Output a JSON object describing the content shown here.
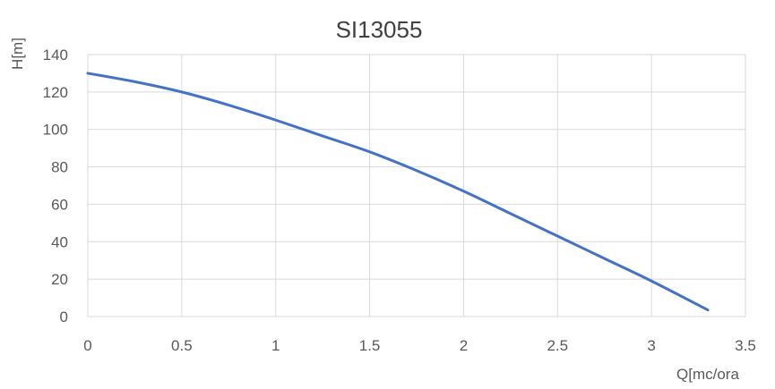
{
  "chart_data": {
    "type": "line",
    "title": "SI13055",
    "xlabel": "Q[mc/ora",
    "ylabel": "H[m]",
    "xlim": [
      0,
      3.5
    ],
    "ylim": [
      0,
      140
    ],
    "x_ticks": [
      "0",
      "0.5",
      "1",
      "1.5",
      "2",
      "2.5",
      "3",
      "3.5"
    ],
    "y_ticks": [
      "0",
      "20",
      "40",
      "60",
      "80",
      "100",
      "120",
      "140"
    ],
    "grid": true,
    "series": [
      {
        "color": "#4472c4",
        "x": [
          0,
          0.25,
          0.5,
          0.75,
          1.0,
          1.25,
          1.5,
          1.75,
          2.0,
          2.25,
          2.5,
          2.75,
          3.0,
          3.3
        ],
        "y": [
          130,
          125.5,
          120,
          113,
          105,
          96.5,
          88,
          78,
          67,
          55,
          43,
          31,
          19,
          3.5
        ]
      }
    ]
  },
  "colors": {
    "line": "#4472c4",
    "grid": "#d9d9d9",
    "text": "#595959"
  }
}
